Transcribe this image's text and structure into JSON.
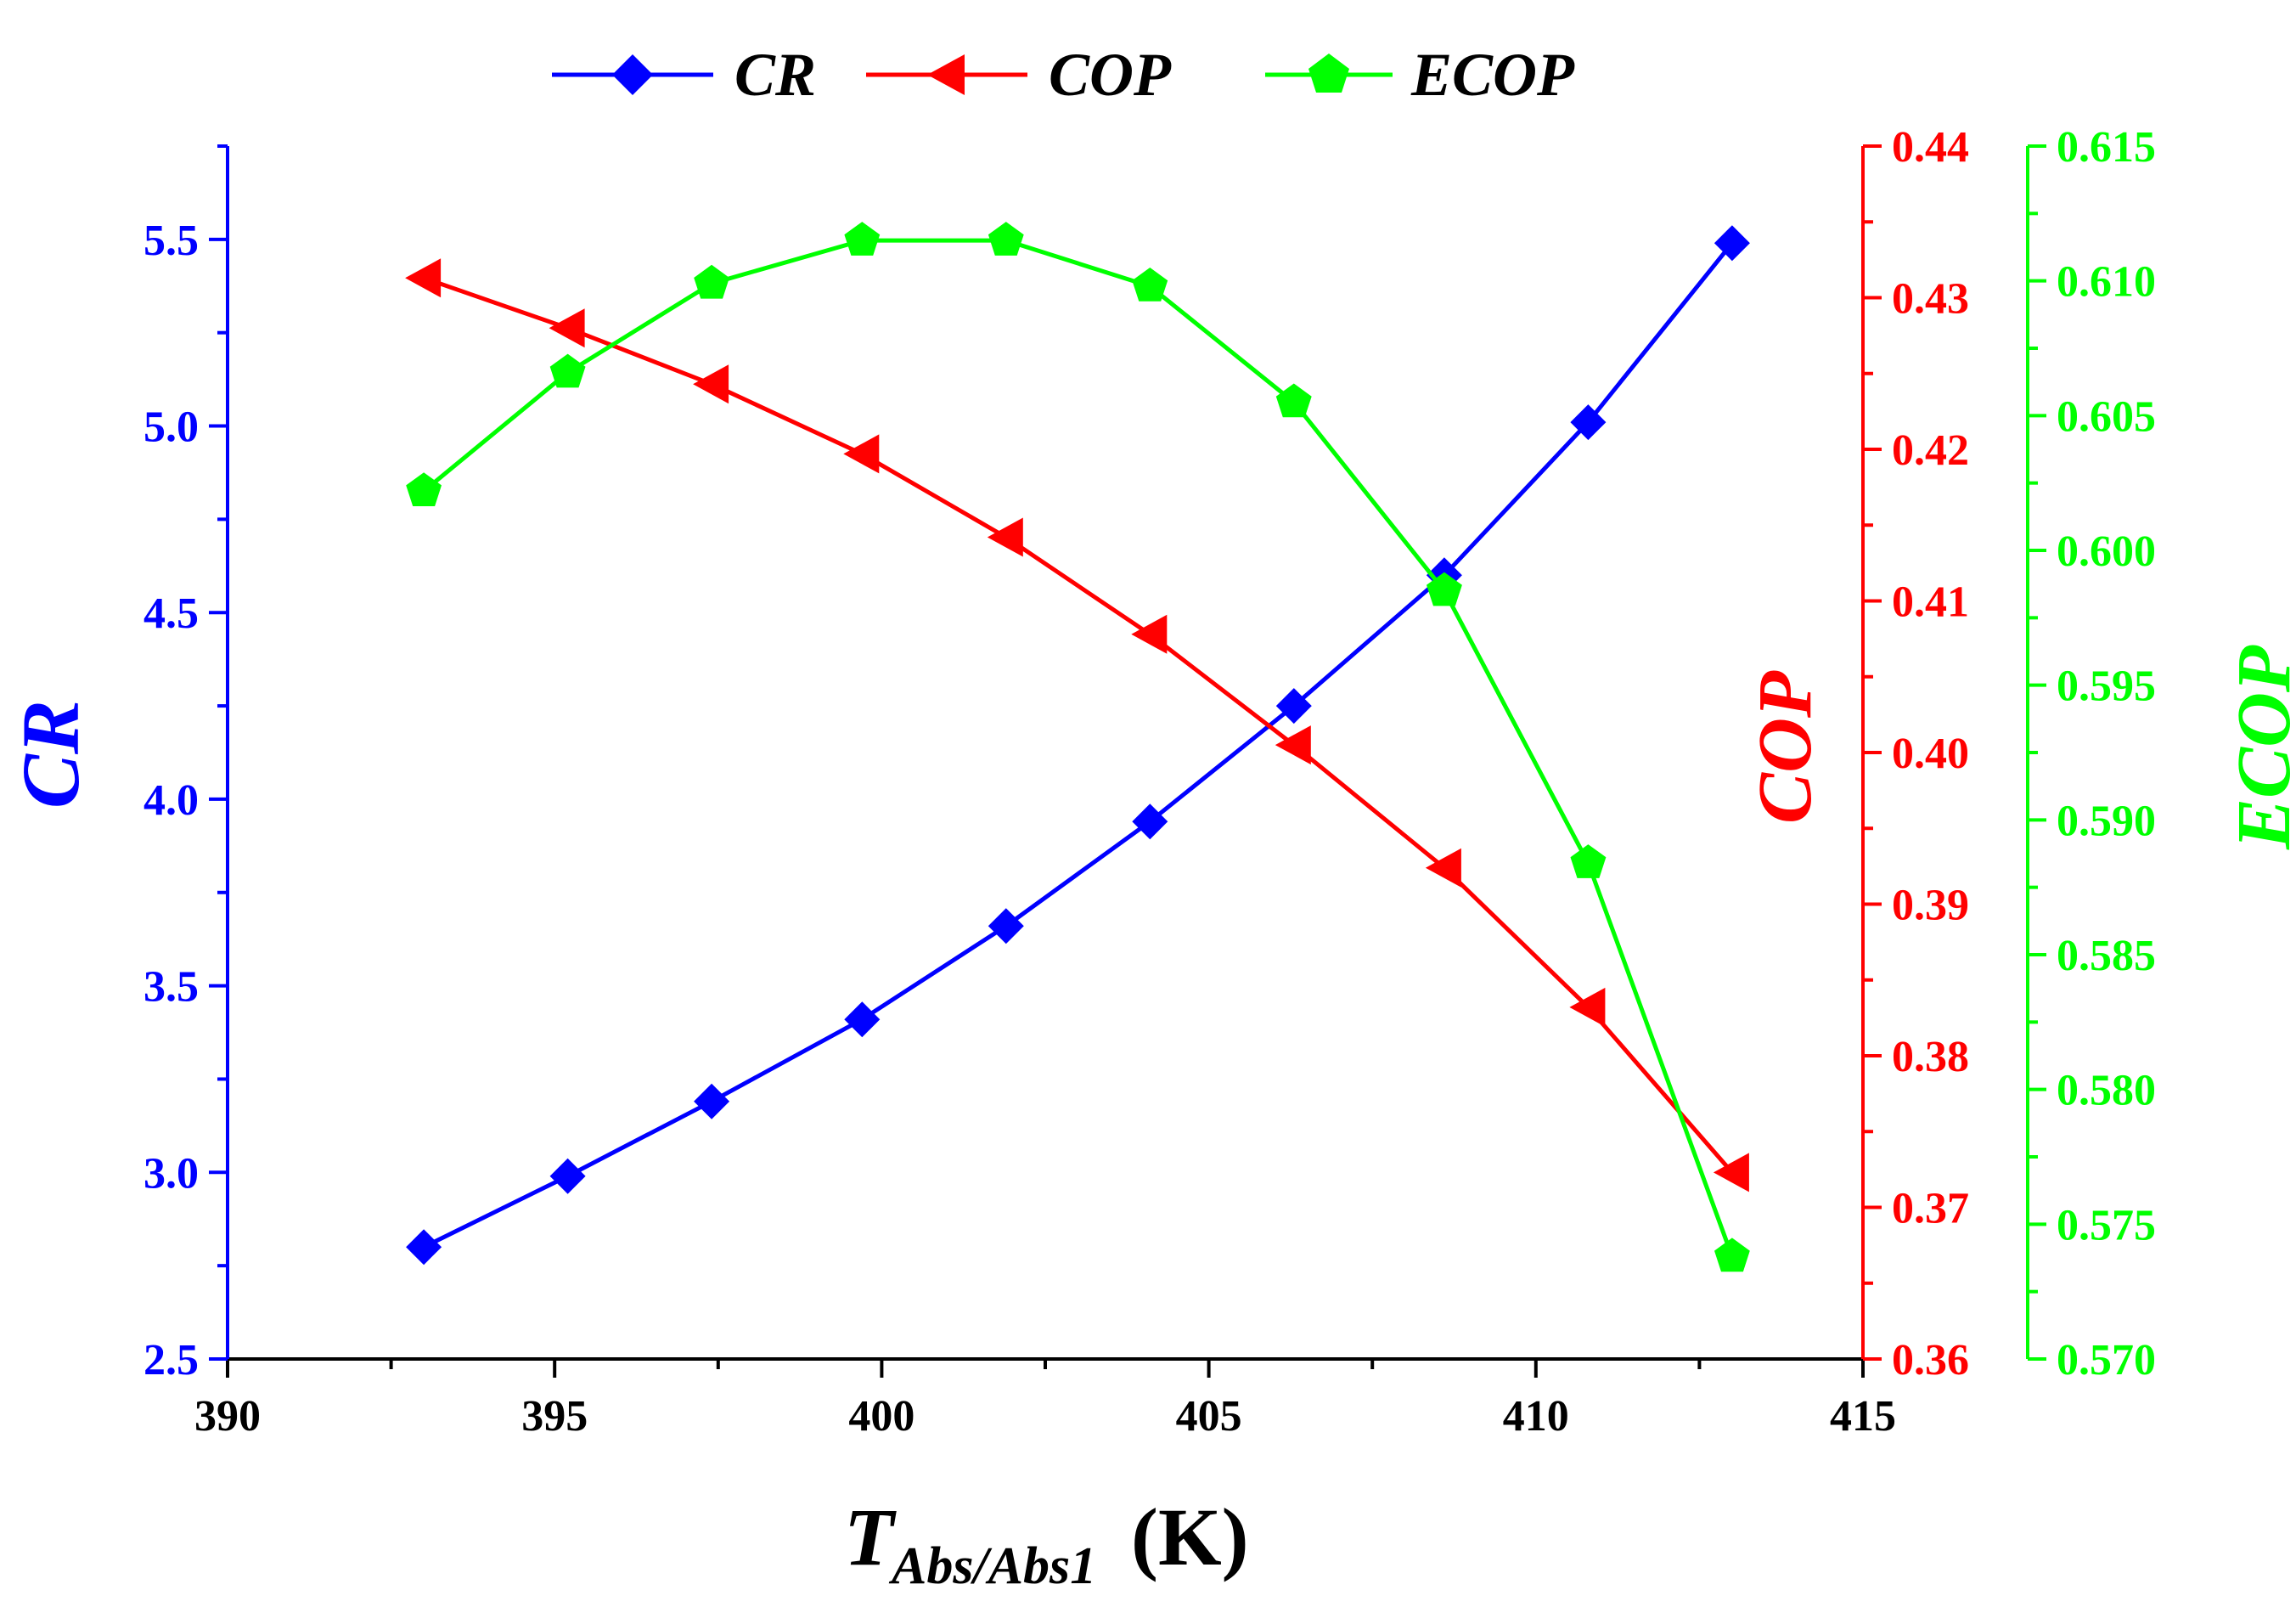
{
  "chart_data": {
    "type": "line",
    "x": [
      393.0,
      395.2,
      397.4,
      399.7,
      401.9,
      404.1,
      406.3,
      408.6,
      410.8,
      413.0
    ],
    "xlabel": {
      "main": "T",
      "subscript": "Abs/Abs1",
      "unit": "(K)"
    },
    "xlim": [
      390,
      415
    ],
    "xticks": [
      "390",
      "395",
      "400",
      "405",
      "410",
      "415"
    ],
    "series": [
      {
        "name": "CR",
        "axis": "left",
        "color": "#0000ff",
        "marker": "diamond",
        "values": [
          2.8,
          2.99,
          3.19,
          3.41,
          3.66,
          3.94,
          4.25,
          4.6,
          5.01,
          5.49
        ]
      },
      {
        "name": "COP",
        "axis": "right1",
        "color": "#ff0000",
        "marker": "left-triangle",
        "values": [
          0.4313,
          0.428,
          0.4243,
          0.4197,
          0.4142,
          0.4078,
          0.4005,
          0.3924,
          0.3832,
          0.3723
        ]
      },
      {
        "name": "ECOP",
        "axis": "right2",
        "color": "#00ff00",
        "marker": "pentagon",
        "values": [
          0.6022,
          0.6066,
          0.6099,
          0.6115,
          0.6115,
          0.6098,
          0.6055,
          0.5985,
          0.5884,
          0.5738
        ]
      }
    ],
    "axes": {
      "left": {
        "label": "CR",
        "color": "#0000ff",
        "ylim": [
          2.5,
          5.75
        ],
        "ticks": [
          "2.5",
          "3.0",
          "3.5",
          "4.0",
          "4.5",
          "5.0",
          "5.5"
        ]
      },
      "right1": {
        "label": "COP",
        "color": "#ff0000",
        "ylim": [
          0.36,
          0.44
        ],
        "ticks": [
          "0.36",
          "0.37",
          "0.38",
          "0.39",
          "0.40",
          "0.41",
          "0.42",
          "0.43",
          "0.44"
        ]
      },
      "right2": {
        "label": "ECOP",
        "color": "#00ff00",
        "ylim": [
          0.57,
          0.615
        ],
        "ticks": [
          "0.570",
          "0.575",
          "0.580",
          "0.585",
          "0.590",
          "0.595",
          "0.600",
          "0.605",
          "0.610",
          "0.615"
        ]
      }
    },
    "legend": {
      "position": "top-center",
      "entries": [
        "CR",
        "COP",
        "ECOP"
      ]
    }
  }
}
